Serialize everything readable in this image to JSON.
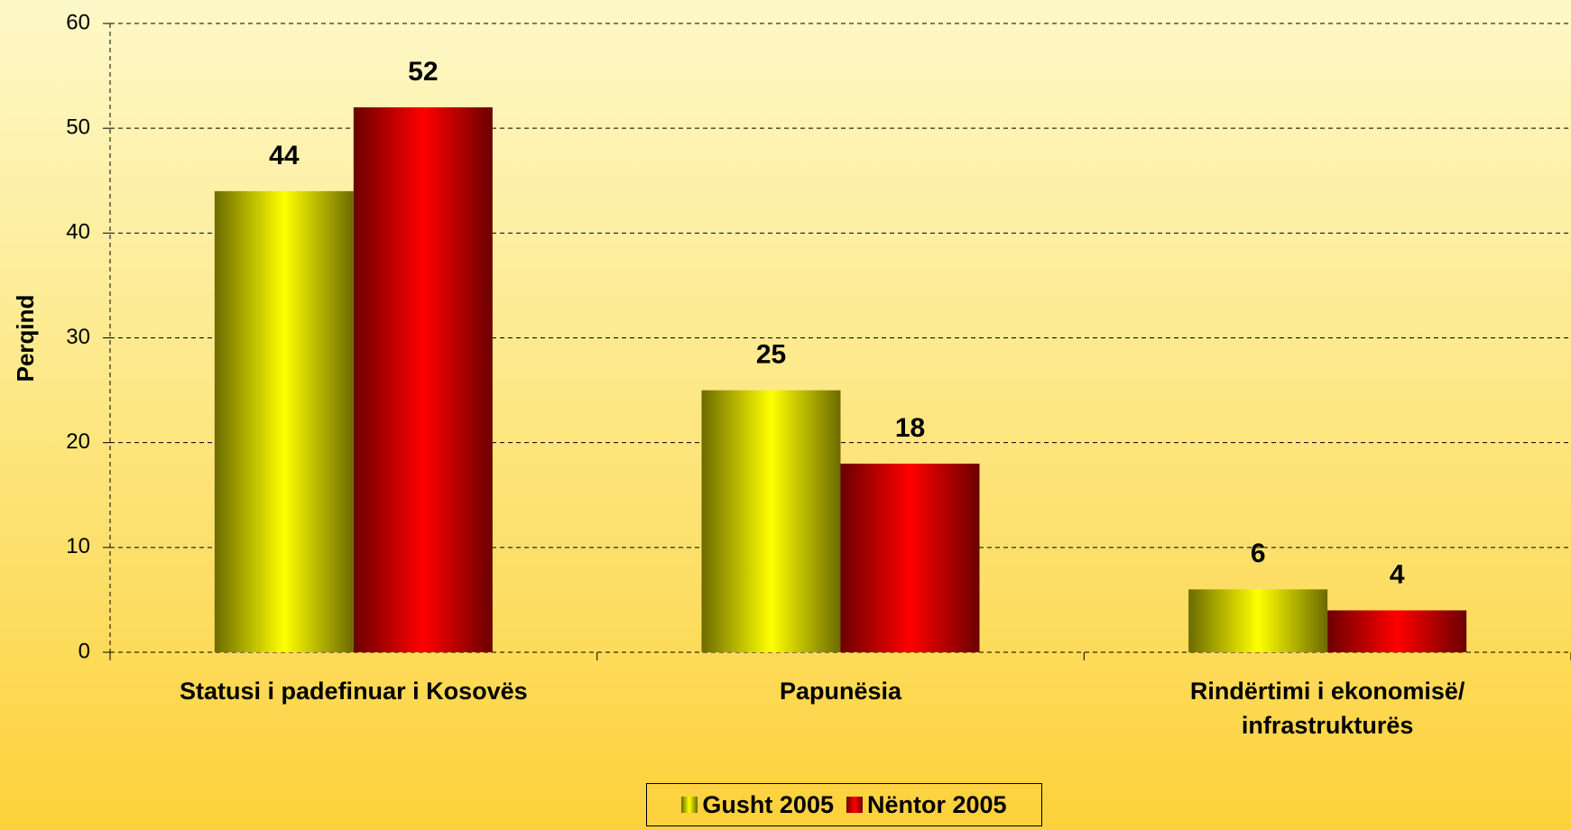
{
  "chart_data": {
    "type": "bar",
    "y_label": "Perqind",
    "categories": [
      "Statusi i padefinuar i Kosovës",
      "Papunësia",
      "Rindërtimi i ekonomisë/ infrastrukturës"
    ],
    "series": [
      {
        "name": "Gusht 2005",
        "color": "#ffff00",
        "values": [
          44,
          25,
          6
        ]
      },
      {
        "name": "Nëntor 2005",
        "color": "#ff0000",
        "values": [
          52,
          18,
          4
        ]
      }
    ],
    "ylim": [
      0,
      60
    ],
    "yticks": [
      0,
      10,
      20,
      30,
      40,
      50,
      60
    ],
    "grid": true,
    "legend": "bottom"
  }
}
